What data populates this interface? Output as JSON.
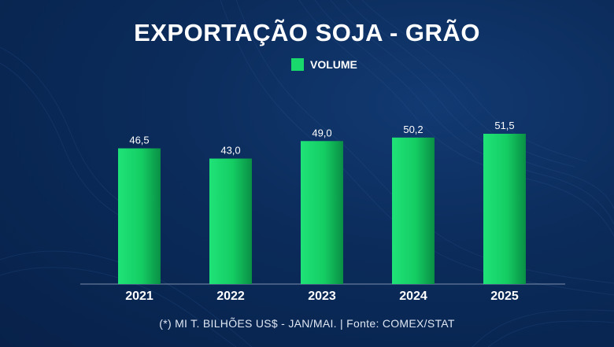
{
  "title": "EXPORTAÇÃO SOJA - GRÃO",
  "legend": {
    "label": "VOLUME",
    "color": "#19d96c"
  },
  "footnote": "(*) MI T. BILHÕES US$ - JAN/MAI. | Fonte: COMEX/STAT",
  "chart_data": {
    "type": "bar",
    "title": "EXPORTAÇÃO SOJA - GRÃO",
    "categories": [
      "2021",
      "2022",
      "2023",
      "2024",
      "2025"
    ],
    "series": [
      {
        "name": "VOLUME",
        "values": [
          46.5,
          43.0,
          49.0,
          50.2,
          51.5
        ],
        "labels": [
          "46,5",
          "43,0",
          "49,0",
          "50,2",
          "51,5"
        ]
      }
    ],
    "xlabel": "",
    "ylabel": "",
    "ylim": [
      0,
      51.5
    ],
    "grid": false,
    "legend_position": "top-center"
  }
}
